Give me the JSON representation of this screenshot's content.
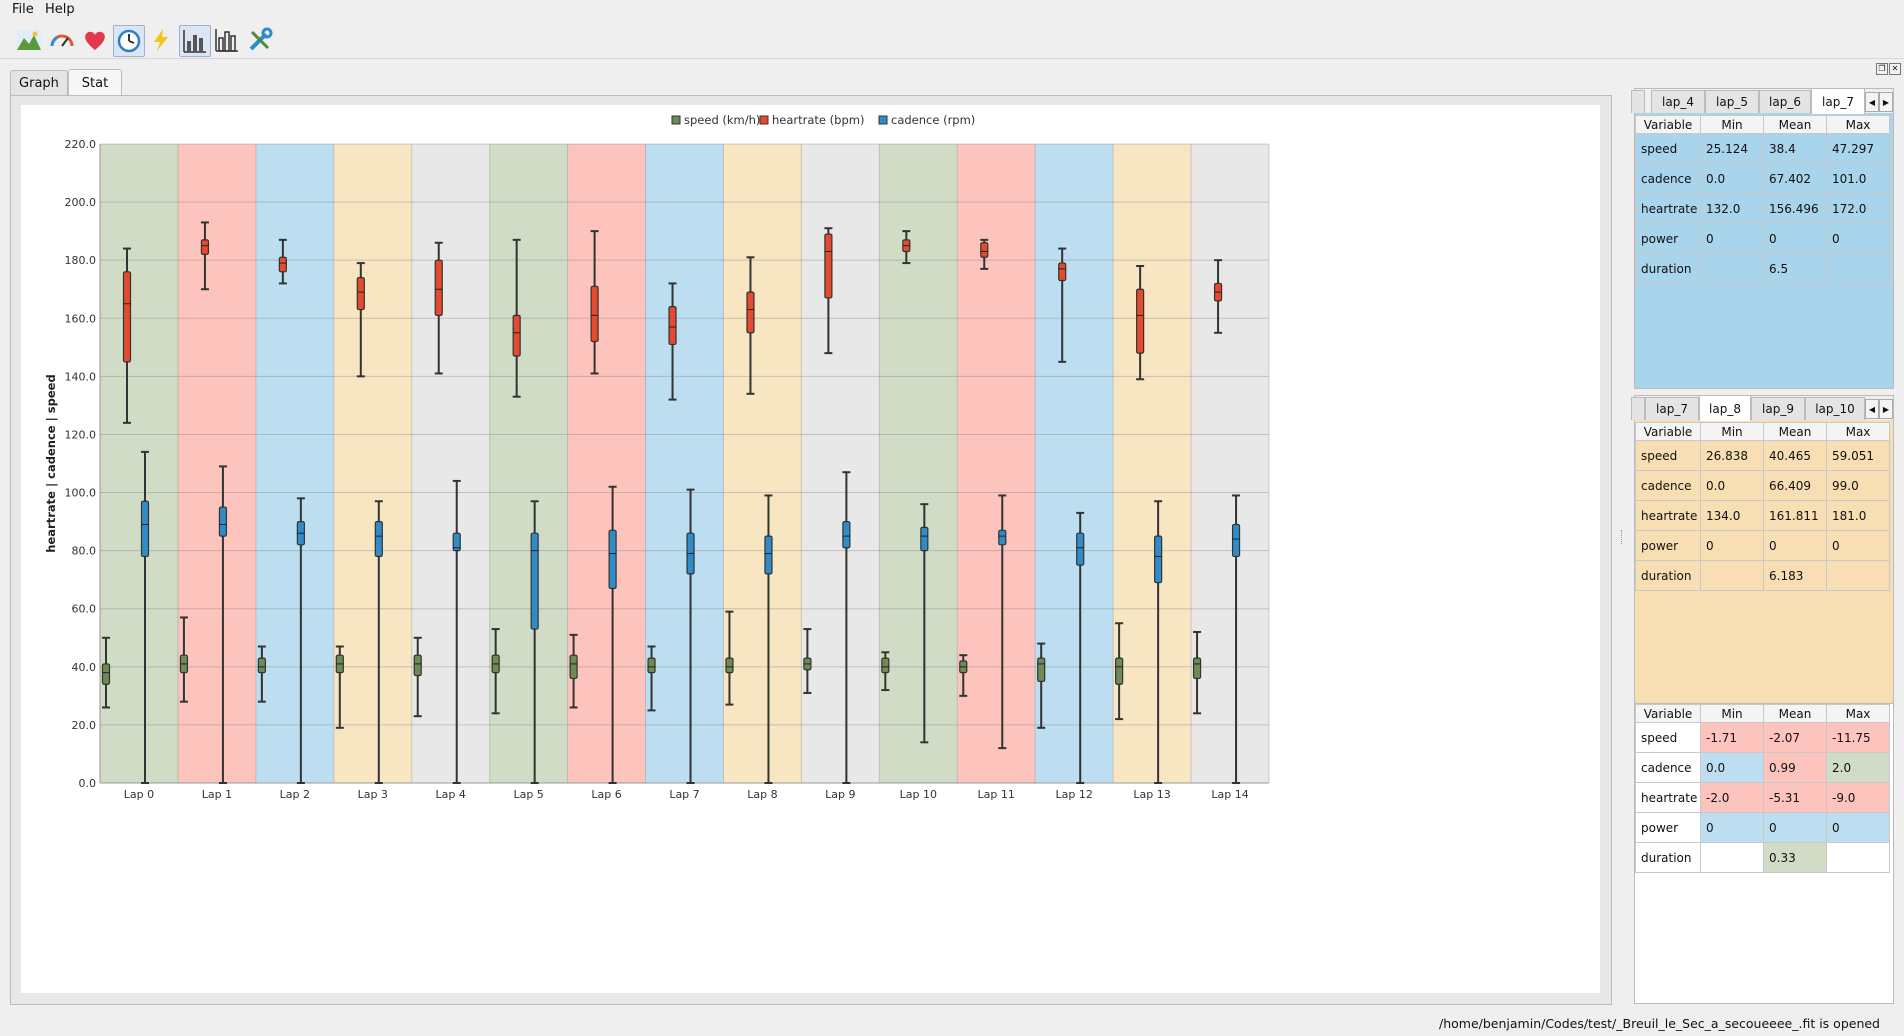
{
  "menu": {
    "file": "File",
    "help": "Help"
  },
  "toolbar": {
    "icons": [
      "landscape-icon",
      "gauge-icon",
      "heart-icon",
      "clock-icon",
      "lightning-icon",
      "bar-chart-icon",
      "box-chart-icon",
      "tools-icon"
    ]
  },
  "tabs": {
    "graph": "Graph",
    "stat": "Stat"
  },
  "chart_data": {
    "type": "boxplot",
    "ylabel": "heartrate | cadence | speed",
    "ylim": [
      0,
      220
    ],
    "yticks": [
      "0.0",
      "20.0",
      "40.0",
      "60.0",
      "80.0",
      "100.0",
      "120.0",
      "140.0",
      "160.0",
      "180.0",
      "200.0",
      "220.0"
    ],
    "categories": [
      "Lap 0",
      "Lap 1",
      "Lap 2",
      "Lap 3",
      "Lap 4",
      "Lap 5",
      "Lap 6",
      "Lap 7",
      "Lap 8",
      "Lap 9",
      "Lap 10",
      "Lap 11",
      "Lap 12",
      "Lap 13",
      "Lap 14"
    ],
    "band_colors": [
      "#d0dcc6",
      "#fcc4bc",
      "#bcdef0",
      "#f8e5c1",
      "#e8e8e8"
    ],
    "legend": [
      {
        "name": "speed (km/h)",
        "color": "#6e8a55"
      },
      {
        "name": "heartrate (bpm)",
        "color": "#e44b2e"
      },
      {
        "name": "cadence (rpm)",
        "color": "#2f8cc9"
      }
    ],
    "series": [
      {
        "name": "speed (km/h)",
        "color": "#6e8a55",
        "boxes": [
          [
            26,
            34,
            38,
            41,
            50
          ],
          [
            28,
            38,
            41,
            44,
            57
          ],
          [
            28,
            38,
            40,
            43,
            47
          ],
          [
            19,
            38,
            41,
            44,
            47
          ],
          [
            23,
            37,
            41,
            44,
            50
          ],
          [
            24,
            38,
            41,
            44,
            53
          ],
          [
            26,
            36,
            41,
            44,
            51
          ],
          [
            25,
            38,
            40,
            43,
            47
          ],
          [
            27,
            38,
            40,
            43,
            59
          ],
          [
            31,
            39,
            41,
            43,
            53
          ],
          [
            32,
            38,
            40,
            43,
            45
          ],
          [
            30,
            38,
            40,
            42,
            44
          ],
          [
            19,
            35,
            41,
            43,
            48
          ],
          [
            22,
            34,
            40,
            43,
            55
          ],
          [
            24,
            36,
            41,
            43,
            52
          ]
        ]
      },
      {
        "name": "heartrate (bpm)",
        "color": "#e44b2e",
        "boxes": [
          [
            124,
            145,
            165,
            176,
            184
          ],
          [
            170,
            182,
            185,
            187,
            193
          ],
          [
            172,
            176,
            179,
            181,
            187
          ],
          [
            140,
            163,
            169,
            174,
            179
          ],
          [
            141,
            161,
            170,
            180,
            186
          ],
          [
            133,
            147,
            155,
            161,
            187
          ],
          [
            141,
            152,
            161,
            171,
            190
          ],
          [
            132,
            151,
            157,
            164,
            172
          ],
          [
            134,
            155,
            163,
            169,
            181
          ],
          [
            148,
            167,
            183,
            189,
            191
          ],
          [
            179,
            183,
            185,
            187,
            190
          ],
          [
            177,
            181,
            183,
            186,
            187
          ],
          [
            145,
            173,
            177,
            179,
            184
          ],
          [
            139,
            148,
            161,
            170,
            178
          ],
          [
            155,
            166,
            169,
            172,
            180
          ]
        ]
      },
      {
        "name": "cadence (rpm)",
        "color": "#2f8cc9",
        "boxes": [
          [
            0,
            78,
            89,
            97,
            114
          ],
          [
            0,
            85,
            89,
            95,
            109
          ],
          [
            0,
            82,
            86,
            90,
            98
          ],
          [
            0,
            78,
            85,
            90,
            97
          ],
          [
            0,
            80,
            81,
            86,
            104
          ],
          [
            0,
            53,
            80,
            86,
            97
          ],
          [
            0,
            67,
            79,
            87,
            102
          ],
          [
            0,
            72,
            79,
            86,
            101
          ],
          [
            0,
            72,
            79,
            85,
            99
          ],
          [
            0,
            81,
            85,
            90,
            107
          ],
          [
            14,
            80,
            85,
            88,
            96
          ],
          [
            12,
            82,
            85,
            87,
            99
          ],
          [
            0,
            75,
            81,
            86,
            93
          ],
          [
            0,
            69,
            78,
            85,
            97
          ],
          [
            0,
            78,
            84,
            89,
            99
          ]
        ]
      }
    ]
  },
  "panels": [
    {
      "tabs": [
        "lap_4",
        "lap_5",
        "lap_6",
        "lap_7"
      ],
      "active_tab": 3,
      "bg": "#a8d4ec",
      "headers": [
        "Variable",
        "Min",
        "Mean",
        "Max"
      ],
      "rows": [
        [
          "speed",
          "25.124",
          "38.4",
          "47.297"
        ],
        [
          "cadence",
          "0.0",
          "67.402",
          "101.0"
        ],
        [
          "heartrate",
          "132.0",
          "156.496",
          "172.0"
        ],
        [
          "power",
          "0",
          "0",
          "0"
        ],
        [
          "duration",
          "",
          "6.5",
          ""
        ]
      ]
    },
    {
      "tabs": [
        "lap_7",
        "lap_8",
        "lap_9",
        "lap_10"
      ],
      "active_tab": 1,
      "bg": "#f7deb3",
      "headers": [
        "Variable",
        "Min",
        "Mean",
        "Max"
      ],
      "rows": [
        [
          "speed",
          "26.838",
          "40.465",
          "59.051"
        ],
        [
          "cadence",
          "0.0",
          "66.409",
          "99.0"
        ],
        [
          "heartrate",
          "134.0",
          "161.811",
          "181.0"
        ],
        [
          "power",
          "0",
          "0",
          "0"
        ],
        [
          "duration",
          "",
          "6.183",
          ""
        ]
      ]
    },
    {
      "headers": [
        "Variable",
        "Min",
        "Mean",
        "Max"
      ],
      "rows": [
        [
          "speed",
          "-1.71",
          "-2.07",
          "-11.75"
        ],
        [
          "cadence",
          "0.0",
          "0.99",
          "2.0"
        ],
        [
          "heartrate",
          "-2.0",
          "-5.31",
          "-9.0"
        ],
        [
          "power",
          "0",
          "0",
          "0"
        ],
        [
          "duration",
          "",
          "0.33",
          ""
        ]
      ],
      "cell_colors": [
        [
          "#ffffff",
          "#fcc4bc",
          "#fcc4bc",
          "#fcc4bc"
        ],
        [
          "#ffffff",
          "#bcdef0",
          "#fcc4bc",
          "#d0dcc6"
        ],
        [
          "#ffffff",
          "#fcc4bc",
          "#fcc4bc",
          "#fcc4bc"
        ],
        [
          "#ffffff",
          "#bcdef0",
          "#bcdef0",
          "#bcdef0"
        ],
        [
          "#ffffff",
          "#ffffff",
          "#d0dcc6",
          "#ffffff"
        ]
      ]
    }
  ],
  "status": "/home/benjamin/Codes/test/_Breuil_le_Sec_a_secoueeee_.fit is opened"
}
